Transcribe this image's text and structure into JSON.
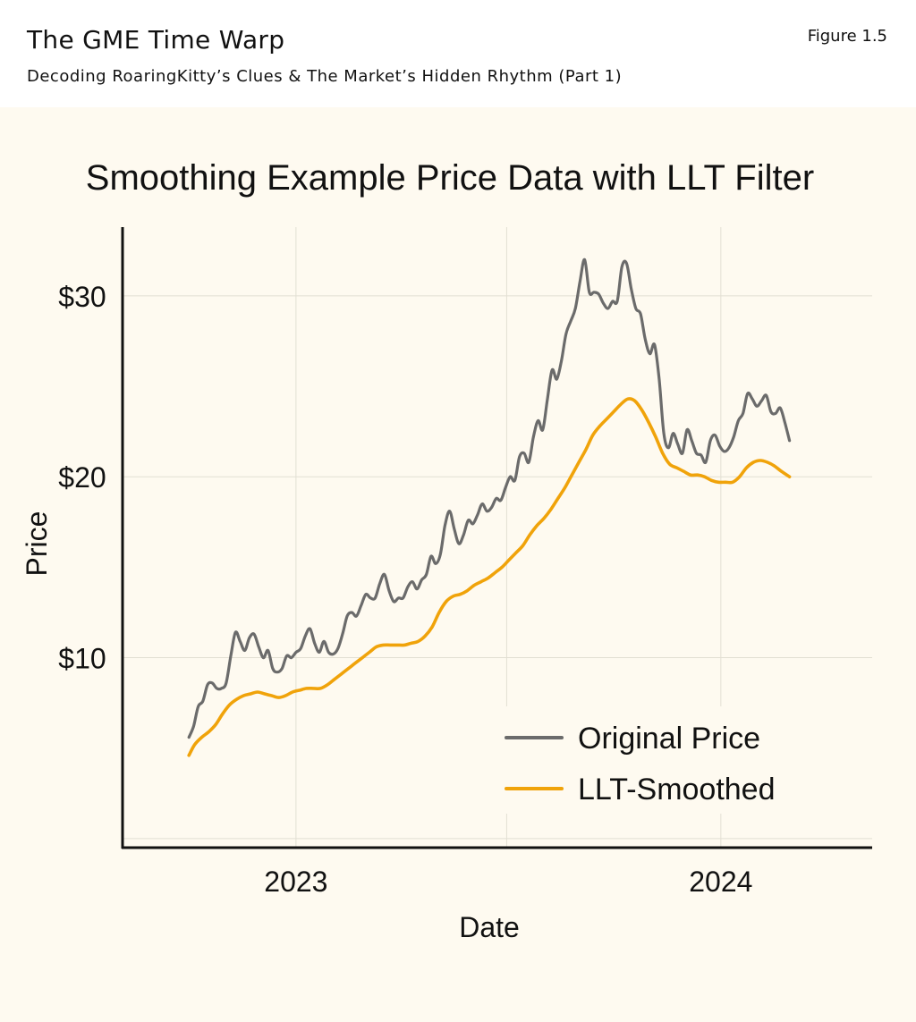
{
  "header": {
    "title": "The GME Time Warp",
    "subtitle": "Decoding RoaringKitty’s Clues & The Market’s Hidden Rhythm (Part 1)",
    "figure_label": "Figure 1.5"
  },
  "colors": {
    "original": "#6b6b6b",
    "smoothed": "#f0a30a",
    "panel_background": "#fefaf0"
  },
  "chart_data": {
    "type": "line",
    "title": "Smoothing Example Price Data with LLT Filter",
    "xlabel": "Date",
    "ylabel": "Price",
    "x_ticks": [
      {
        "label": "2023",
        "date": "2023-01-01"
      },
      {
        "label": "2024",
        "date": "2024-01-01"
      }
    ],
    "y_ticks": [
      {
        "label": "$10",
        "value": 10
      },
      {
        "label": "$20",
        "value": 20
      },
      {
        "label": "$30",
        "value": 30
      }
    ],
    "xlim": [
      "2022-08-05",
      "2024-05-10"
    ],
    "ylim": [
      -0.5,
      33.8
    ],
    "grid": true,
    "legend_position": "bottom-right",
    "series": [
      {
        "name": "Original Price",
        "color": "#6b6b6b",
        "points": [
          [
            "2022-10-01",
            5.6
          ],
          [
            "2022-10-05",
            6.2
          ],
          [
            "2022-10-09",
            7.3
          ],
          [
            "2022-10-13",
            7.6
          ],
          [
            "2022-10-17",
            8.5
          ],
          [
            "2022-10-21",
            8.6
          ],
          [
            "2022-10-25",
            8.3
          ],
          [
            "2022-10-29",
            8.3
          ],
          [
            "2022-11-02",
            8.6
          ],
          [
            "2022-11-06",
            10.1
          ],
          [
            "2022-11-10",
            11.4
          ],
          [
            "2022-11-14",
            10.9
          ],
          [
            "2022-11-18",
            10.4
          ],
          [
            "2022-11-22",
            11.1
          ],
          [
            "2022-11-26",
            11.3
          ],
          [
            "2022-11-30",
            10.6
          ],
          [
            "2022-12-04",
            10.0
          ],
          [
            "2022-12-08",
            10.4
          ],
          [
            "2022-12-12",
            9.4
          ],
          [
            "2022-12-16",
            9.2
          ],
          [
            "2022-12-20",
            9.4
          ],
          [
            "2022-12-24",
            10.1
          ],
          [
            "2022-12-28",
            10.0
          ],
          [
            "2023-01-01",
            10.3
          ],
          [
            "2023-01-05",
            10.5
          ],
          [
            "2023-01-09",
            11.2
          ],
          [
            "2023-01-13",
            11.6
          ],
          [
            "2023-01-17",
            10.8
          ],
          [
            "2023-01-21",
            10.3
          ],
          [
            "2023-01-25",
            10.9
          ],
          [
            "2023-01-29",
            10.3
          ],
          [
            "2023-02-02",
            10.2
          ],
          [
            "2023-02-06",
            10.5
          ],
          [
            "2023-02-10",
            11.3
          ],
          [
            "2023-02-14",
            12.3
          ],
          [
            "2023-02-18",
            12.5
          ],
          [
            "2023-02-22",
            12.3
          ],
          [
            "2023-02-26",
            12.9
          ],
          [
            "2023-03-02",
            13.5
          ],
          [
            "2023-03-06",
            13.3
          ],
          [
            "2023-03-10",
            13.3
          ],
          [
            "2023-03-14",
            14.1
          ],
          [
            "2023-03-18",
            14.6
          ],
          [
            "2023-03-22",
            13.7
          ],
          [
            "2023-03-26",
            13.1
          ],
          [
            "2023-03-30",
            13.3
          ],
          [
            "2023-04-03",
            13.3
          ],
          [
            "2023-04-07",
            13.9
          ],
          [
            "2023-04-11",
            14.2
          ],
          [
            "2023-04-15",
            13.8
          ],
          [
            "2023-04-19",
            14.3
          ],
          [
            "2023-04-23",
            14.6
          ],
          [
            "2023-04-27",
            15.6
          ],
          [
            "2023-05-01",
            15.2
          ],
          [
            "2023-05-05",
            15.7
          ],
          [
            "2023-05-09",
            17.3
          ],
          [
            "2023-05-13",
            18.1
          ],
          [
            "2023-05-17",
            17.1
          ],
          [
            "2023-05-21",
            16.3
          ],
          [
            "2023-05-25",
            16.8
          ],
          [
            "2023-05-29",
            17.6
          ],
          [
            "2023-06-02",
            17.4
          ],
          [
            "2023-06-06",
            17.9
          ],
          [
            "2023-06-10",
            18.5
          ],
          [
            "2023-06-14",
            18.1
          ],
          [
            "2023-06-18",
            18.3
          ],
          [
            "2023-06-22",
            18.8
          ],
          [
            "2023-06-26",
            18.7
          ],
          [
            "2023-06-30",
            19.4
          ],
          [
            "2023-07-04",
            20.0
          ],
          [
            "2023-07-08",
            19.8
          ],
          [
            "2023-07-12",
            21.1
          ],
          [
            "2023-07-16",
            21.3
          ],
          [
            "2023-07-20",
            20.8
          ],
          [
            "2023-07-24",
            22.2
          ],
          [
            "2023-07-28",
            23.1
          ],
          [
            "2023-08-01",
            22.6
          ],
          [
            "2023-08-05",
            24.3
          ],
          [
            "2023-08-09",
            25.9
          ],
          [
            "2023-08-13",
            25.4
          ],
          [
            "2023-08-17",
            26.4
          ],
          [
            "2023-08-21",
            27.9
          ],
          [
            "2023-08-25",
            28.6
          ],
          [
            "2023-08-29",
            29.3
          ],
          [
            "2023-09-02",
            30.8
          ],
          [
            "2023-09-06",
            32.0
          ],
          [
            "2023-09-10",
            30.2
          ],
          [
            "2023-09-14",
            30.2
          ],
          [
            "2023-09-18",
            30.1
          ],
          [
            "2023-09-22",
            29.6
          ],
          [
            "2023-09-26",
            29.3
          ],
          [
            "2023-09-30",
            29.7
          ],
          [
            "2023-10-04",
            29.7
          ],
          [
            "2023-10-08",
            31.6
          ],
          [
            "2023-10-12",
            31.8
          ],
          [
            "2023-10-16",
            30.4
          ],
          [
            "2023-10-20",
            29.3
          ],
          [
            "2023-10-24",
            29.0
          ],
          [
            "2023-10-28",
            27.6
          ],
          [
            "2023-11-01",
            26.8
          ],
          [
            "2023-11-05",
            27.3
          ],
          [
            "2023-11-09",
            25.4
          ],
          [
            "2023-11-13",
            22.4
          ],
          [
            "2023-11-17",
            21.6
          ],
          [
            "2023-11-21",
            22.4
          ],
          [
            "2023-11-25",
            21.8
          ],
          [
            "2023-11-29",
            21.3
          ],
          [
            "2023-12-03",
            22.6
          ],
          [
            "2023-12-07",
            22.0
          ],
          [
            "2023-12-11",
            21.3
          ],
          [
            "2023-12-15",
            21.2
          ],
          [
            "2023-12-19",
            20.8
          ],
          [
            "2023-12-23",
            22.0
          ],
          [
            "2023-12-27",
            22.3
          ],
          [
            "2023-12-31",
            21.7
          ],
          [
            "2024-01-04",
            21.4
          ],
          [
            "2024-01-08",
            21.6
          ],
          [
            "2024-01-12",
            22.2
          ],
          [
            "2024-01-16",
            23.1
          ],
          [
            "2024-01-20",
            23.5
          ],
          [
            "2024-01-24",
            24.6
          ],
          [
            "2024-01-28",
            24.3
          ],
          [
            "2024-02-01",
            23.9
          ],
          [
            "2024-02-05",
            24.2
          ],
          [
            "2024-02-09",
            24.5
          ],
          [
            "2024-02-13",
            23.6
          ],
          [
            "2024-02-17",
            23.5
          ],
          [
            "2024-02-21",
            23.8
          ],
          [
            "2024-02-25",
            23.0
          ],
          [
            "2024-02-29",
            22.0
          ]
        ]
      },
      {
        "name": "LLT-Smoothed",
        "color": "#f0a30a",
        "points": [
          [
            "2022-10-01",
            4.6
          ],
          [
            "2022-10-06",
            5.2
          ],
          [
            "2022-10-12",
            5.6
          ],
          [
            "2022-10-18",
            5.9
          ],
          [
            "2022-10-24",
            6.3
          ],
          [
            "2022-10-30",
            6.9
          ],
          [
            "2022-11-05",
            7.4
          ],
          [
            "2022-11-11",
            7.7
          ],
          [
            "2022-11-17",
            7.9
          ],
          [
            "2022-11-23",
            8.0
          ],
          [
            "2022-11-29",
            8.1
          ],
          [
            "2022-12-05",
            8.0
          ],
          [
            "2022-12-11",
            7.9
          ],
          [
            "2022-12-17",
            7.8
          ],
          [
            "2022-12-23",
            7.9
          ],
          [
            "2022-12-29",
            8.1
          ],
          [
            "2023-01-04",
            8.2
          ],
          [
            "2023-01-10",
            8.3
          ],
          [
            "2023-01-16",
            8.3
          ],
          [
            "2023-01-22",
            8.3
          ],
          [
            "2023-01-28",
            8.5
          ],
          [
            "2023-02-03",
            8.8
          ],
          [
            "2023-02-09",
            9.1
          ],
          [
            "2023-02-15",
            9.4
          ],
          [
            "2023-02-21",
            9.7
          ],
          [
            "2023-02-27",
            10.0
          ],
          [
            "2023-03-05",
            10.3
          ],
          [
            "2023-03-11",
            10.6
          ],
          [
            "2023-03-17",
            10.7
          ],
          [
            "2023-03-23",
            10.7
          ],
          [
            "2023-03-29",
            10.7
          ],
          [
            "2023-04-04",
            10.7
          ],
          [
            "2023-04-10",
            10.8
          ],
          [
            "2023-04-16",
            10.9
          ],
          [
            "2023-04-22",
            11.2
          ],
          [
            "2023-04-28",
            11.7
          ],
          [
            "2023-05-04",
            12.5
          ],
          [
            "2023-05-10",
            13.1
          ],
          [
            "2023-05-16",
            13.4
          ],
          [
            "2023-05-22",
            13.5
          ],
          [
            "2023-05-28",
            13.7
          ],
          [
            "2023-06-03",
            14.0
          ],
          [
            "2023-06-09",
            14.2
          ],
          [
            "2023-06-15",
            14.4
          ],
          [
            "2023-06-21",
            14.7
          ],
          [
            "2023-06-27",
            15.0
          ],
          [
            "2023-07-03",
            15.4
          ],
          [
            "2023-07-09",
            15.8
          ],
          [
            "2023-07-15",
            16.2
          ],
          [
            "2023-07-21",
            16.8
          ],
          [
            "2023-07-27",
            17.3
          ],
          [
            "2023-08-02",
            17.7
          ],
          [
            "2023-08-08",
            18.2
          ],
          [
            "2023-08-14",
            18.8
          ],
          [
            "2023-08-20",
            19.4
          ],
          [
            "2023-08-26",
            20.1
          ],
          [
            "2023-09-01",
            20.8
          ],
          [
            "2023-09-07",
            21.5
          ],
          [
            "2023-09-13",
            22.3
          ],
          [
            "2023-09-19",
            22.8
          ],
          [
            "2023-09-25",
            23.2
          ],
          [
            "2023-10-01",
            23.6
          ],
          [
            "2023-10-07",
            24.0
          ],
          [
            "2023-10-13",
            24.3
          ],
          [
            "2023-10-19",
            24.2
          ],
          [
            "2023-10-25",
            23.7
          ],
          [
            "2023-10-31",
            23.0
          ],
          [
            "2023-11-06",
            22.2
          ],
          [
            "2023-11-12",
            21.3
          ],
          [
            "2023-11-18",
            20.7
          ],
          [
            "2023-11-24",
            20.5
          ],
          [
            "2023-11-30",
            20.3
          ],
          [
            "2023-12-06",
            20.1
          ],
          [
            "2023-12-12",
            20.1
          ],
          [
            "2023-12-18",
            20.0
          ],
          [
            "2023-12-24",
            19.8
          ],
          [
            "2023-12-30",
            19.7
          ],
          [
            "2024-01-05",
            19.7
          ],
          [
            "2024-01-11",
            19.7
          ],
          [
            "2024-01-17",
            20.0
          ],
          [
            "2024-01-23",
            20.5
          ],
          [
            "2024-01-29",
            20.8
          ],
          [
            "2024-02-04",
            20.9
          ],
          [
            "2024-02-10",
            20.8
          ],
          [
            "2024-02-16",
            20.6
          ],
          [
            "2024-02-22",
            20.3
          ],
          [
            "2024-02-29",
            20.0
          ]
        ]
      }
    ]
  }
}
